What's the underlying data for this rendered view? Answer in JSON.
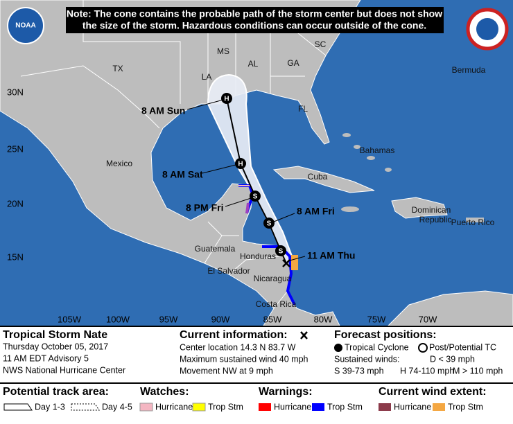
{
  "note": [
    "Note: The cone contains the probable path of the storm center but does not show",
    "the size of the storm. Hazardous conditions can occur outside of the cone."
  ],
  "logo": "NOAA",
  "map": {
    "lat_labels": [
      "30N",
      "25N",
      "20N",
      "15N"
    ],
    "lon_labels": [
      "105W",
      "100W",
      "95W",
      "90W",
      "85W",
      "80W",
      "75W",
      "70W"
    ],
    "places": [
      "TX",
      "LA",
      "MS",
      "AL",
      "GA",
      "SC",
      "FL",
      "Mexico",
      "Bahamas",
      "Cuba",
      "Bermuda",
      "Dominican",
      "Republic",
      "Puerto Rico",
      "Guatemala",
      "Honduras",
      "El Salvador",
      "Nicaragua",
      "Costa Rica"
    ],
    "forecast_labels": [
      "8 AM Sun",
      "8 AM Sat",
      "8 PM Fri",
      "8 AM Fri",
      "11 AM Thu"
    ],
    "markers": [
      "S",
      "S",
      "S",
      "H",
      "H"
    ]
  },
  "storm": {
    "name": "Tropical Storm Nate",
    "date": "Thursday October 05, 2017",
    "advisory": "11 AM EDT Advisory 5",
    "center": "NWS National Hurricane Center"
  },
  "current": {
    "title": "Current information:",
    "lines": [
      "Center location 14.3 N 83.7 W",
      "Maximum sustained wind 40 mph",
      "Movement NW at 9 mph"
    ]
  },
  "forecast": {
    "title": "Forecast positions:",
    "tc": "Tropical Cyclone",
    "post": "Post/Potential TC",
    "winds_label": "Sustained winds:",
    "d": "D < 39 mph",
    "s": "S 39-73 mph",
    "h": "H 74-110 mph",
    "m": "M > 110 mph"
  },
  "legend": {
    "track_area": "Potential track area:",
    "day13": "Day 1-3",
    "day45": "Day 4-5",
    "watches": "Watches:",
    "warnings": "Warnings:",
    "wind_extent": "Current wind extent:",
    "hurricane": "Hurricane",
    "trop_stm": "Trop Stm"
  }
}
